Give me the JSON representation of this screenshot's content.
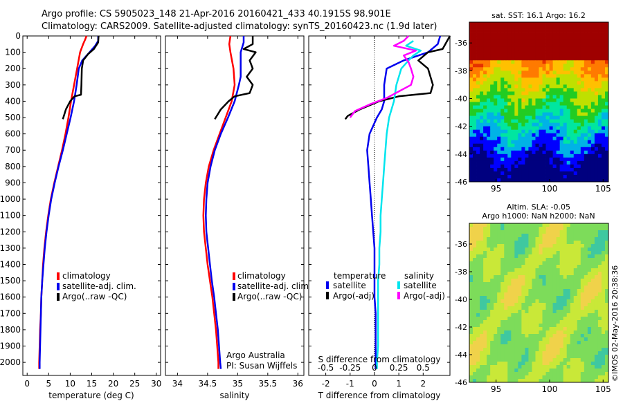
{
  "title_line1": "Argo profile: CS 5905023_148 21-Apr-2016 20160421_433 40.1915S 98.901E",
  "title_line2": "Climatology: CARS2009. Satellite-adjusted climatology: synTS_20160423.nc (1.9d later)",
  "credit": "©IMOS 02-May-2016 20:38:36",
  "chart_data": [
    {
      "id": "temperature",
      "type": "line",
      "xlabel": "temperature (deg C)",
      "xlim": [
        -1,
        31
      ],
      "xticks": [
        0,
        5,
        10,
        15,
        20,
        25,
        30
      ],
      "ylim": [
        2080,
        0
      ],
      "yticks": [
        0,
        100,
        200,
        300,
        400,
        500,
        600,
        700,
        800,
        900,
        1000,
        1100,
        1200,
        1300,
        1400,
        1500,
        1600,
        1700,
        1800,
        1900,
        2000
      ],
      "legend": {
        "placement": "lower-right",
        "entries": [
          "climatology",
          "satellite-adj. clim.",
          "Argo(..raw -QC)"
        ]
      },
      "series": [
        {
          "name": "climatology",
          "color": "#ff0000",
          "points": [
            [
              13.8,
              0
            ],
            [
              13.5,
              20
            ],
            [
              13.0,
              50
            ],
            [
              12.3,
              100
            ],
            [
              11.6,
              200
            ],
            [
              10.9,
              300
            ],
            [
              10.2,
              400
            ],
            [
              9.6,
              500
            ],
            [
              8.9,
              600
            ],
            [
              8.1,
              700
            ],
            [
              7.2,
              800
            ],
            [
              6.3,
              900
            ],
            [
              5.5,
              1000
            ],
            [
              4.9,
              1100
            ],
            [
              4.4,
              1200
            ],
            [
              4.0,
              1300
            ],
            [
              3.7,
              1400
            ],
            [
              3.5,
              1500
            ],
            [
              3.3,
              1600
            ],
            [
              3.2,
              1700
            ],
            [
              3.0,
              1800
            ],
            [
              2.9,
              1900
            ],
            [
              2.8,
              2000
            ],
            [
              2.8,
              2040
            ]
          ]
        },
        {
          "name": "satellite-adj. clim.",
          "color": "#0000ee",
          "points": [
            [
              16.5,
              0
            ],
            [
              16.5,
              30
            ],
            [
              15.8,
              60
            ],
            [
              14.5,
              100
            ],
            [
              12.8,
              150
            ],
            [
              12.0,
              200
            ],
            [
              11.5,
              300
            ],
            [
              10.9,
              400
            ],
            [
              10.1,
              500
            ],
            [
              9.2,
              600
            ],
            [
              8.3,
              700
            ],
            [
              7.3,
              800
            ],
            [
              6.4,
              900
            ],
            [
              5.6,
              1000
            ],
            [
              5.0,
              1100
            ],
            [
              4.5,
              1200
            ],
            [
              4.1,
              1300
            ],
            [
              3.8,
              1400
            ],
            [
              3.5,
              1500
            ],
            [
              3.3,
              1600
            ],
            [
              3.2,
              1700
            ],
            [
              3.1,
              1800
            ],
            [
              3.0,
              1900
            ],
            [
              2.9,
              2000
            ],
            [
              2.9,
              2040
            ]
          ]
        },
        {
          "name": "Argo(..raw -QC)",
          "color": "#000000",
          "points": [
            [
              16.6,
              0
            ],
            [
              16.5,
              40
            ],
            [
              15.5,
              80
            ],
            [
              14.2,
              110
            ],
            [
              13.0,
              150
            ],
            [
              12.7,
              200
            ],
            [
              12.6,
              300
            ],
            [
              12.5,
              360
            ],
            [
              11.0,
              370
            ],
            [
              10.0,
              400
            ],
            [
              9.0,
              450
            ],
            [
              8.3,
              510
            ]
          ]
        }
      ]
    },
    {
      "id": "salinity",
      "type": "line",
      "xlabel": "salinity",
      "xlim": [
        33.8,
        36.1
      ],
      "xticks": [
        34,
        34.5,
        35,
        35.5,
        36
      ],
      "ylim": [
        2080,
        0
      ],
      "legend": {
        "placement": "lower-right",
        "entries": [
          "climatology",
          "satellite-adj. clim.",
          "Argo(..raw -QC)"
        ]
      },
      "annotations": [
        "Argo Australia",
        "PI: Susan Wijffels"
      ],
      "series": [
        {
          "name": "climatology",
          "color": "#ff0000",
          "points": [
            [
              34.88,
              0
            ],
            [
              34.86,
              50
            ],
            [
              34.88,
              100
            ],
            [
              34.93,
              200
            ],
            [
              34.95,
              300
            ],
            [
              34.9,
              400
            ],
            [
              34.8,
              500
            ],
            [
              34.7,
              600
            ],
            [
              34.6,
              700
            ],
            [
              34.52,
              800
            ],
            [
              34.47,
              900
            ],
            [
              34.44,
              1000
            ],
            [
              34.43,
              1100
            ],
            [
              34.44,
              1200
            ],
            [
              34.47,
              1300
            ],
            [
              34.5,
              1400
            ],
            [
              34.54,
              1500
            ],
            [
              34.58,
              1600
            ],
            [
              34.61,
              1700
            ],
            [
              34.64,
              1800
            ],
            [
              34.66,
              1900
            ],
            [
              34.68,
              2000
            ],
            [
              34.68,
              2040
            ]
          ]
        },
        {
          "name": "satellite-adj. clim.",
          "color": "#0000ee",
          "points": [
            [
              35.1,
              0
            ],
            [
              35.1,
              40
            ],
            [
              35.05,
              100
            ],
            [
              35.05,
              150
            ],
            [
              35.05,
              250
            ],
            [
              35.02,
              300
            ],
            [
              34.95,
              400
            ],
            [
              34.84,
              500
            ],
            [
              34.72,
              600
            ],
            [
              34.62,
              700
            ],
            [
              34.55,
              800
            ],
            [
              34.5,
              900
            ],
            [
              34.48,
              1000
            ],
            [
              34.47,
              1100
            ],
            [
              34.48,
              1200
            ],
            [
              34.51,
              1300
            ],
            [
              34.54,
              1400
            ],
            [
              34.57,
              1500
            ],
            [
              34.61,
              1600
            ],
            [
              34.64,
              1700
            ],
            [
              34.67,
              1800
            ],
            [
              34.69,
              1900
            ],
            [
              34.71,
              2000
            ],
            [
              34.72,
              2040
            ]
          ]
        },
        {
          "name": "Argo(..raw -QC)",
          "color": "#000000",
          "points": [
            [
              35.25,
              0
            ],
            [
              35.25,
              50
            ],
            [
              35.1,
              80
            ],
            [
              35.3,
              100
            ],
            [
              35.2,
              150
            ],
            [
              35.25,
              200
            ],
            [
              35.15,
              250
            ],
            [
              35.25,
              300
            ],
            [
              35.2,
              350
            ],
            [
              34.95,
              370
            ],
            [
              34.85,
              400
            ],
            [
              34.72,
              450
            ],
            [
              34.62,
              510
            ]
          ]
        }
      ]
    },
    {
      "id": "difference",
      "type": "line",
      "xlabel": "T difference from climatology",
      "xlim": [
        -2.7,
        3.1
      ],
      "xticks": [
        -2,
        -1,
        0,
        1,
        2
      ],
      "top_axis_label": "S difference from climatology",
      "top_axis_ticks": [
        "-0.5",
        "-0.25",
        "0",
        "0.25",
        "0.5"
      ],
      "ylim": [
        2080,
        0
      ],
      "legend": {
        "placement": "lower-right",
        "group_titles": [
          "temperature",
          "salinity"
        ],
        "entries": [
          "satellite",
          "Argo(-adj)",
          "satellite",
          "Argo(-adj)"
        ]
      },
      "series": [
        {
          "name": "temperature satellite",
          "color": "#0000ee",
          "points": [
            [
              2.7,
              0
            ],
            [
              2.6,
              50
            ],
            [
              2.2,
              100
            ],
            [
              1.2,
              150
            ],
            [
              0.5,
              200
            ],
            [
              0.4,
              300
            ],
            [
              0.4,
              400
            ],
            [
              0.3,
              450
            ],
            [
              0.1,
              500
            ],
            [
              -0.2,
              600
            ],
            [
              -0.3,
              700
            ],
            [
              -0.25,
              800
            ],
            [
              -0.2,
              900
            ],
            [
              -0.15,
              1000
            ],
            [
              -0.1,
              1100
            ],
            [
              -0.05,
              1200
            ],
            [
              0.0,
              1300
            ],
            [
              0.0,
              1400
            ],
            [
              0.0,
              1500
            ],
            [
              0.0,
              1600
            ],
            [
              0.05,
              1700
            ],
            [
              0.05,
              1800
            ],
            [
              0.05,
              1900
            ],
            [
              0.05,
              2000
            ],
            [
              0.05,
              2040
            ]
          ]
        },
        {
          "name": "temperature Argo(-adj)",
          "color": "#000000",
          "points": [
            [
              3.1,
              0
            ],
            [
              2.8,
              80
            ],
            [
              2.2,
              100
            ],
            [
              1.8,
              150
            ],
            [
              2.2,
              200
            ],
            [
              2.4,
              300
            ],
            [
              2.3,
              350
            ],
            [
              1.0,
              370
            ],
            [
              0.2,
              400
            ],
            [
              -0.6,
              450
            ],
            [
              -1.1,
              490
            ],
            [
              -1.2,
              510
            ]
          ]
        },
        {
          "name": "salinity satellite",
          "color": "#00e5ee",
          "points": [
            [
              1.6,
              30
            ],
            [
              1.3,
              60
            ],
            [
              1.9,
              90
            ],
            [
              1.6,
              120
            ],
            [
              1.4,
              150
            ],
            [
              1.1,
              200
            ],
            [
              0.9,
              300
            ],
            [
              0.8,
              400
            ],
            [
              0.6,
              500
            ],
            [
              0.5,
              600
            ],
            [
              0.45,
              700
            ],
            [
              0.4,
              800
            ],
            [
              0.35,
              900
            ],
            [
              0.3,
              1000
            ],
            [
              0.25,
              1100
            ],
            [
              0.25,
              1200
            ],
            [
              0.2,
              1300
            ],
            [
              0.2,
              1400
            ],
            [
              0.15,
              1500
            ],
            [
              0.15,
              1600
            ],
            [
              0.15,
              1700
            ],
            [
              0.15,
              1800
            ],
            [
              0.15,
              1900
            ],
            [
              0.1,
              2000
            ],
            [
              0.1,
              2040
            ]
          ]
        },
        {
          "name": "salinity Argo(-adj)",
          "color": "#ff00ff",
          "points": [
            [
              1.4,
              0
            ],
            [
              1.2,
              30
            ],
            [
              0.8,
              60
            ],
            [
              1.7,
              90
            ],
            [
              1.2,
              120
            ],
            [
              1.4,
              160
            ],
            [
              1.5,
              200
            ],
            [
              1.6,
              250
            ],
            [
              1.5,
              300
            ],
            [
              0.5,
              380
            ],
            [
              -0.2,
              420
            ],
            [
              -0.8,
              460
            ],
            [
              -1.0,
              500
            ]
          ]
        }
      ]
    },
    {
      "id": "sst-map",
      "type": "heatmap",
      "title": "sat. SST: 16.1  Argo: 16.2",
      "xticks": [
        95,
        100,
        105
      ],
      "yticks": [
        -36,
        -38,
        -40,
        -42,
        -44,
        -46
      ],
      "xlim": [
        92.5,
        105.5
      ],
      "ylim": [
        -46,
        -34.5
      ],
      "colors": [
        "#00007f",
        "#0000ff",
        "#00b2e6",
        "#00e6a0",
        "#22cc22",
        "#bfe000",
        "#ffc000",
        "#ff7a00",
        "#e63000",
        "#9f0000"
      ]
    },
    {
      "id": "sla-map",
      "type": "heatmap",
      "title_line1": "Altim. SLA: -0.05",
      "title_line2": "Argo h1000: NaN h2000: NaN",
      "xticks": [
        95,
        100,
        105
      ],
      "yticks": [
        -36,
        -38,
        -40,
        -42,
        -44,
        -46
      ],
      "xlim": [
        92.5,
        105.5
      ],
      "ylim": [
        -46,
        -34.5
      ],
      "colors": [
        "#2aa6c8",
        "#3fc8a0",
        "#7ddc5a",
        "#c9e838",
        "#f0d24a",
        "#f4a83a"
      ]
    }
  ]
}
